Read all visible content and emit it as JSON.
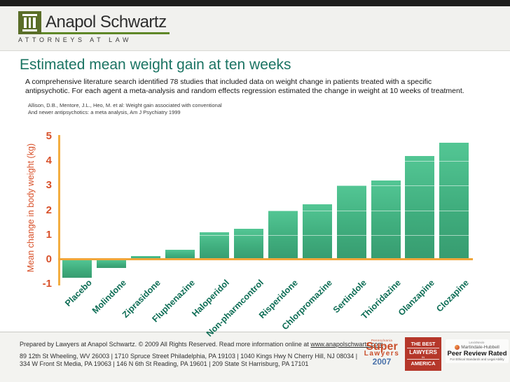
{
  "header": {
    "brand": "Anapol Schwartz",
    "tagline": "ATTORNEYS AT LAW"
  },
  "slide": {
    "title": "Estimated mean weight gain at ten weeks",
    "subtitle_line1": "A comprehensive literature search identified 78 studies that included data on weight change in patients treated with a specific",
    "subtitle_line2": "antipsychotic. For each agent a meta-analysis and random effects regression estimated the change in weight at 10 weeks of treatment.",
    "citation_line1": "Allison, D.B., Mentore, J.L., Heo, M. et al: Weight gain associated with conventional",
    "citation_line2": "And newer antipsychotics: a meta analysis, Am J Psychiatry 1999"
  },
  "chart_data": {
    "type": "bar",
    "title": "",
    "xlabel": "",
    "ylabel": "Mean change in body weight (kg)",
    "categories": [
      "Placebo",
      "Molindone",
      "Ziprasidone",
      "Fluphenazine",
      "Haloperidol",
      "Non-pharmcontrol",
      "Risperidone",
      "Chlorpromazine",
      "Sertindole",
      "Thioridazine",
      "Olanzapine",
      "Clozapine"
    ],
    "values": [
      -0.75,
      -0.35,
      0.15,
      0.4,
      1.1,
      1.25,
      2.0,
      2.25,
      3.0,
      3.2,
      4.2,
      4.75
    ],
    "yticks": [
      5,
      4,
      3,
      2,
      1,
      0,
      -1
    ],
    "ylim": [
      -1,
      5
    ],
    "grid": false,
    "legend_position": "none",
    "bar_color_top": "#53c694",
    "bar_color_bottom": "#379c70",
    "axis_color": "#f0a63a",
    "tick_label_color": "#d8512a",
    "category_label_color": "#0d6d55"
  },
  "footer": {
    "prepared_prefix": "Prepared by Lawyers at Anapol Schwartz. © 2009 All Rights Reserved. Read more information online at ",
    "website": "www.anapolschwartz.com",
    "period": ".",
    "address_line1": "89 12th St Wheeling, WV 26003 | 1710 Spruce Street Philadelphia, PA 19103 | 1040 Kings Hwy N Cherry Hill, NJ 08034 |",
    "address_line2": "334 W Front St Media, PA 19063 | 146 N 6th St Reading, PA 19601 | 209 State St Harrisburg, PA 17101",
    "badges": {
      "super": {
        "state": "Pennsylvania",
        "word1": "Super",
        "word2": "Lawyers",
        "year": "2007"
      },
      "best": {
        "line1": "THE BEST",
        "line2": "LAWYERS",
        "line3": "IN",
        "line4": "AMERICA"
      },
      "martindale": {
        "brand": "LexisNexis·",
        "name": "Martindale-Hubbell",
        "rating": "Peer Review Rated",
        "subtext": "For Ethical Standards and Legal Ability"
      }
    }
  }
}
